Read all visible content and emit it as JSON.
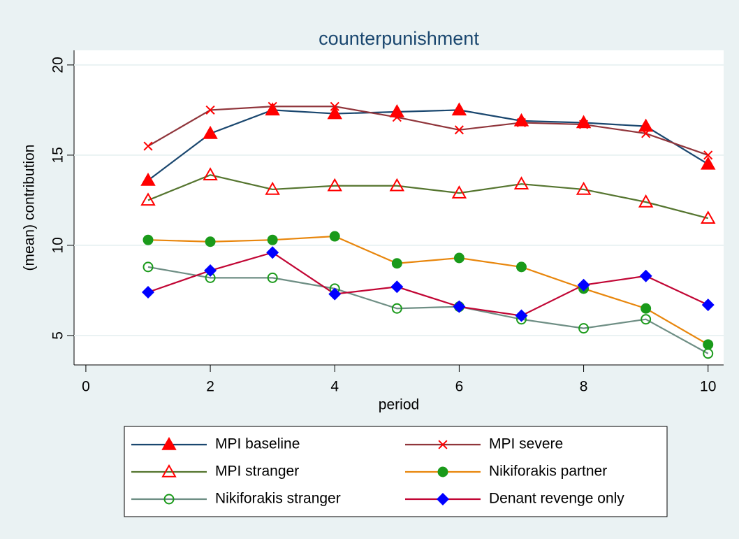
{
  "chart_data": {
    "type": "line",
    "title": "counterpunishment",
    "x_label": "period",
    "y_label": "(mean) contribution",
    "x": [
      1,
      2,
      3,
      4,
      5,
      6,
      7,
      8,
      9,
      10
    ],
    "xlim": [
      -0.19,
      10.25
    ],
    "xticks": [
      0,
      2,
      4,
      6,
      8,
      10
    ],
    "ylim": [
      3.37,
      20.81
    ],
    "yticks": [
      5,
      10,
      15,
      20
    ],
    "grid": true,
    "legend": "bottom",
    "series": [
      {
        "name": "MPI baseline",
        "color": "#1a476f",
        "marker": "triangle",
        "marker_color": "#ff0000",
        "values": [
          13.6,
          16.2,
          17.5,
          17.3,
          17.4,
          17.5,
          16.9,
          16.8,
          16.6,
          14.5
        ]
      },
      {
        "name": "MPI severe",
        "color": "#90353b",
        "marker": "x",
        "marker_color": "#ff0000",
        "values": [
          15.5,
          17.5,
          17.7,
          17.7,
          17.1,
          16.4,
          16.8,
          16.7,
          16.2,
          15.0
        ]
      },
      {
        "name": "MPI stranger",
        "color": "#55752f",
        "marker": "triangle-hollow",
        "marker_color": "#ff0000",
        "values": [
          12.5,
          13.9,
          13.1,
          13.3,
          13.3,
          12.9,
          13.4,
          13.1,
          12.4,
          11.5
        ]
      },
      {
        "name": "Nikiforakis partner",
        "color": "#e8860c",
        "marker": "circle",
        "marker_color": "#1a9a1a",
        "values": [
          10.3,
          10.2,
          10.3,
          10.5,
          9.0,
          9.3,
          8.8,
          7.6,
          6.5,
          4.5
        ]
      },
      {
        "name": "Nikiforakis stranger",
        "color": "#6e8e84",
        "marker": "circle-hollow",
        "marker_color": "#1a9a1a",
        "values": [
          8.8,
          8.2,
          8.2,
          7.6,
          6.5,
          6.6,
          5.9,
          5.4,
          5.9,
          4.0
        ]
      },
      {
        "name": "Denant revenge only",
        "color": "#c10534",
        "marker": "diamond",
        "marker_color": "#0000ff",
        "values": [
          7.4,
          8.6,
          9.6,
          7.3,
          7.7,
          6.6,
          6.1,
          7.8,
          8.3,
          6.7
        ]
      }
    ]
  }
}
